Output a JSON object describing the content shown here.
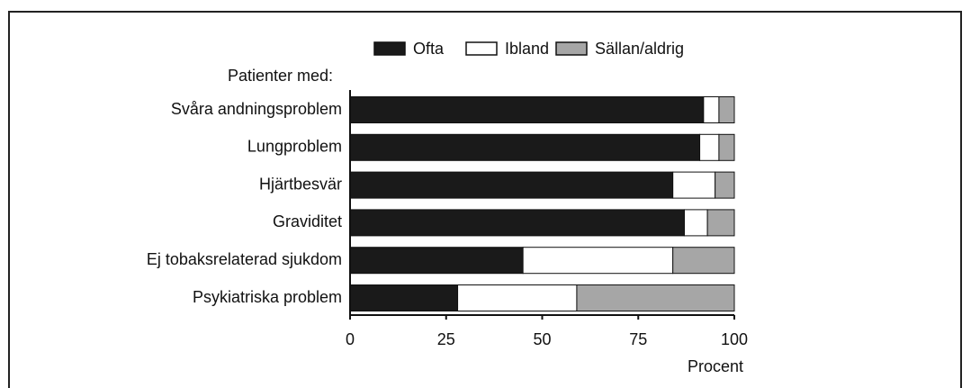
{
  "chart_data": {
    "type": "stacked_barh",
    "ylabel": "Patienter med:",
    "xlabel": "Procent",
    "categories": [
      "Svåra andningsproblem",
      "Lungproblem",
      "Hjärtbesvär",
      "Graviditet",
      "Ej tobaksrelaterad sjukdom",
      "Psykiatriska problem"
    ],
    "series": [
      {
        "name": "Ofta",
        "color": "#1a1a1a",
        "values": [
          92,
          91,
          84,
          87,
          45,
          28
        ]
      },
      {
        "name": "Ibland",
        "color": "#ffffff",
        "values": [
          4,
          5,
          11,
          6,
          39,
          31
        ]
      },
      {
        "name": "Sällan/aldrig",
        "color": "#a6a6a6",
        "values": [
          4,
          4,
          5,
          7,
          16,
          41
        ]
      }
    ],
    "xlim": [
      0,
      100
    ],
    "xticks": [
      0,
      25,
      50,
      75,
      100
    ]
  }
}
